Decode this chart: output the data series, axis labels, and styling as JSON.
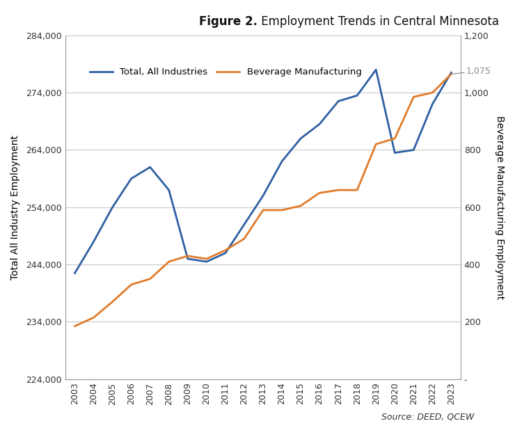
{
  "years": [
    2003,
    2004,
    2005,
    2006,
    2007,
    2008,
    2009,
    2010,
    2011,
    2012,
    2013,
    2014,
    2015,
    2016,
    2017,
    2018,
    2019,
    2020,
    2021,
    2022,
    2023
  ],
  "total_all_industries": [
    242500,
    248000,
    254000,
    259000,
    261000,
    257000,
    245000,
    244500,
    246000,
    251000,
    256000,
    262000,
    266000,
    268500,
    272500,
    273500,
    278000,
    263500,
    264000,
    272000,
    277500
  ],
  "beverage_manufacturing": [
    185,
    215,
    270,
    330,
    350,
    410,
    430,
    420,
    450,
    490,
    590,
    590,
    605,
    650,
    660,
    660,
    820,
    840,
    985,
    1000,
    1065
  ],
  "title_bold": "Figure 2.",
  "title_regular": " Employment Trends in Central Minnesota",
  "legend_line1": "Total, All Industries",
  "legend_line2": "Beverage Manufacturing",
  "ylabel_left": "Total All Industry Employment",
  "ylabel_right": "Beverage Manufacturing Employment",
  "source_text": "Source: DEED, QCEW",
  "color_blue": "#2E5FA3",
  "color_orange": "#E07B2A",
  "ylim_left": [
    224000,
    284000
  ],
  "ylim_right": [
    0,
    1200
  ],
  "yticks_left": [
    224000,
    234000,
    244000,
    254000,
    264000,
    274000,
    284000
  ],
  "yticks_right": [
    0,
    200,
    400,
    600,
    800,
    1000,
    1200
  ],
  "background_color": "#FFFFFF",
  "grid_color": "#C8C8C8"
}
